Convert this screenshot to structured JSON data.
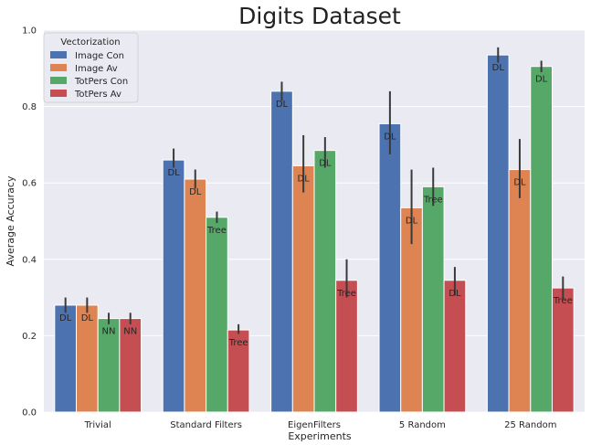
{
  "chart_data": {
    "type": "bar",
    "title": "Digits Dataset",
    "xlabel": "Experiments",
    "ylabel": "Average Accuracy",
    "ylim": [
      0,
      1.0
    ],
    "yticks": [
      "0.0",
      "0.2",
      "0.4",
      "0.6",
      "0.8",
      "1.0"
    ],
    "grid": true,
    "legend": {
      "title": "Vectorization",
      "placement": "top-left"
    },
    "categories": [
      "Trivial",
      "Standard Filters",
      "EigenFilters",
      "5 Random",
      "25 Random"
    ],
    "series": [
      {
        "name": "Image Con",
        "color": "#4c72b0",
        "values": [
          0.28,
          0.66,
          0.84,
          0.755,
          0.935
        ],
        "err_low": [
          0.26,
          0.64,
          0.815,
          0.675,
          0.915
        ],
        "err_high": [
          0.3,
          0.69,
          0.865,
          0.84,
          0.955
        ],
        "labels": [
          "DL",
          "DL",
          "DL",
          "DL",
          "DL"
        ]
      },
      {
        "name": "Image Av",
        "color": "#dd8452",
        "values": [
          0.28,
          0.61,
          0.645,
          0.535,
          0.635
        ],
        "err_low": [
          0.26,
          0.585,
          0.575,
          0.44,
          0.56
        ],
        "err_high": [
          0.3,
          0.635,
          0.725,
          0.635,
          0.715
        ],
        "labels": [
          "DL",
          "DL",
          "DL",
          "DL",
          "DL"
        ]
      },
      {
        "name": "TotPers Con",
        "color": "#55a868",
        "values": [
          0.245,
          0.51,
          0.685,
          0.59,
          0.905
        ],
        "err_low": [
          0.23,
          0.495,
          0.64,
          0.54,
          0.89
        ],
        "err_high": [
          0.26,
          0.525,
          0.72,
          0.64,
          0.92
        ],
        "labels": [
          "NN",
          "Tree",
          "DL",
          "Tree",
          "DL"
        ]
      },
      {
        "name": "TotPers Av",
        "color": "#c44e52",
        "values": [
          0.245,
          0.215,
          0.345,
          0.345,
          0.325
        ],
        "err_low": [
          0.23,
          0.205,
          0.3,
          0.305,
          0.295
        ],
        "err_high": [
          0.26,
          0.23,
          0.4,
          0.38,
          0.355
        ],
        "labels": [
          "NN",
          "Tree",
          "Tree",
          "DL",
          "Tree"
        ]
      }
    ]
  }
}
